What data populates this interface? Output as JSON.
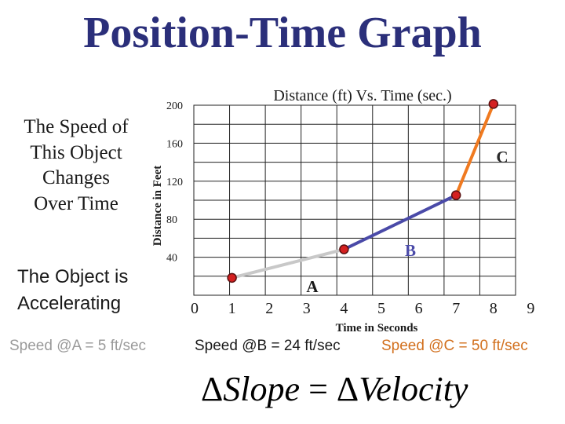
{
  "title": "Position-Time Graph",
  "captions": {
    "speed_changes": [
      "The Speed of",
      "This Object",
      "Changes",
      "Over Time"
    ],
    "accelerating": [
      "The Object is",
      "Accelerating"
    ]
  },
  "speeds": {
    "a": "Speed @A = 5 ft/sec",
    "b": "Speed @B = 24 ft/sec",
    "c": "Speed @C = 50 ft/sec"
  },
  "formula": {
    "delta": "Δ",
    "left": "Slope",
    "equals": " = ",
    "right": "Velocity"
  },
  "colors": {
    "title": "#2b2f7a",
    "segment_a": "#c8c8c8",
    "segment_b": "#4a4aa8",
    "segment_c": "#f07a20",
    "point_fill": "#d42020",
    "point_stroke": "#5a1010",
    "grid": "#222222",
    "label_c": "#2a2a2a"
  },
  "chart_data": {
    "type": "line",
    "title": "Distance (ft) Vs. Time (sec.)",
    "xlabel": "Time in Seconds",
    "ylabel": "Distance in Feet",
    "xlim": [
      0,
      9
    ],
    "ylim": [
      0,
      200
    ],
    "x_ticks": [
      "0",
      "1",
      "2",
      "3",
      "4",
      "5",
      "6",
      "7",
      "8",
      "9"
    ],
    "y_ticks": [
      "40",
      "80",
      "120",
      "160",
      "200"
    ],
    "grid": true,
    "points": [
      {
        "x": 1,
        "y": 15
      },
      {
        "x": 4,
        "y": 45
      },
      {
        "x": 7,
        "y": 102
      },
      {
        "x": 8,
        "y": 198
      }
    ],
    "segments": [
      {
        "label": "A",
        "from": 0,
        "to": 1,
        "color_key": "segment_a"
      },
      {
        "label": "B",
        "from": 1,
        "to": 2,
        "color_key": "segment_b"
      },
      {
        "label": "C",
        "from": 2,
        "to": 3,
        "color_key": "segment_c"
      }
    ]
  }
}
